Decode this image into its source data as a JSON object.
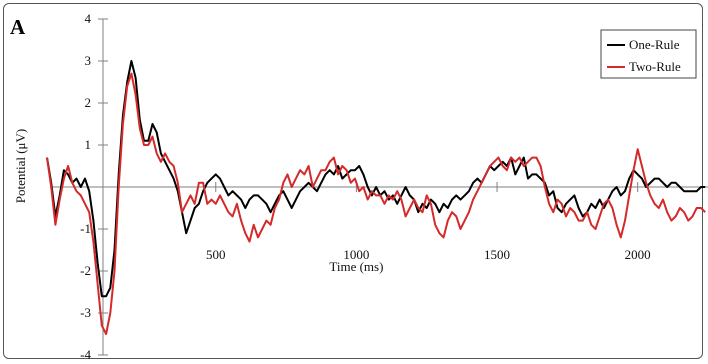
{
  "panel_label": "A",
  "chart_data": {
    "type": "line",
    "title": "",
    "xlabel": "Time (ms)",
    "ylabel": "Potential (μV)",
    "xlim": [
      -100,
      2250
    ],
    "ylim": [
      -4,
      4
    ],
    "x_ticks": [
      500,
      1000,
      1500,
      2000
    ],
    "x_tick_labels": [
      "500",
      "1000",
      "1500",
      "2000"
    ],
    "y_ticks": [
      -4,
      -3,
      -2,
      -1,
      0,
      1,
      2,
      3,
      4
    ],
    "y_tick_labels": [
      "-4",
      "-3",
      "-2",
      "-1",
      "",
      "1",
      "2",
      "3",
      "4"
    ],
    "grid": false,
    "legend_position": "top-right",
    "series": [
      {
        "name": "One-Rule",
        "color": "#000000",
        "x": [
          -100,
          -85,
          -70,
          -55,
          -40,
          -25,
          -10,
          5,
          20,
          35,
          50,
          65,
          80,
          95,
          110,
          125,
          140,
          155,
          170,
          185,
          200,
          215,
          230,
          245,
          260,
          275,
          290,
          305,
          320,
          335,
          350,
          365,
          380,
          395,
          410,
          425,
          440,
          455,
          470,
          485,
          500,
          515,
          530,
          545,
          560,
          575,
          590,
          605,
          620,
          635,
          650,
          665,
          680,
          695,
          710,
          725,
          740,
          755,
          770,
          785,
          800,
          815,
          830,
          845,
          860,
          875,
          890,
          905,
          920,
          935,
          950,
          965,
          980,
          995,
          1010,
          1025,
          1040,
          1055,
          1070,
          1085,
          1100,
          1115,
          1130,
          1145,
          1160,
          1175,
          1190,
          1205,
          1220,
          1235,
          1250,
          1265,
          1280,
          1295,
          1310,
          1325,
          1340,
          1355,
          1370,
          1385,
          1400,
          1415,
          1430,
          1445,
          1460,
          1475,
          1490,
          1505,
          1520,
          1535,
          1550,
          1565,
          1580,
          1595,
          1610,
          1625,
          1640,
          1655,
          1670,
          1685,
          1700,
          1715,
          1730,
          1745,
          1760,
          1775,
          1790,
          1805,
          1820,
          1835,
          1850,
          1865,
          1880,
          1895,
          1910,
          1925,
          1940,
          1955,
          1970,
          1985,
          2000,
          2015,
          2030,
          2045,
          2060,
          2075,
          2090,
          2105,
          2120,
          2135,
          2150,
          2165,
          2180,
          2195,
          2210,
          2225,
          2240
        ],
        "values": [
          0.7,
          0.1,
          -0.7,
          -0.2,
          0.4,
          0.3,
          0.1,
          0.2,
          0.0,
          0.2,
          -0.1,
          -0.8,
          -1.8,
          -2.6,
          -2.6,
          -2.4,
          -1.5,
          0.3,
          1.7,
          2.5,
          3.0,
          2.6,
          1.6,
          1.1,
          1.1,
          1.5,
          1.3,
          0.8,
          0.6,
          0.4,
          0.2,
          -0.1,
          -0.6,
          -1.1,
          -0.8,
          -0.5,
          -0.4,
          -0.1,
          0.1,
          0.2,
          0.3,
          0.2,
          0.0,
          -0.2,
          -0.1,
          -0.2,
          -0.3,
          -0.5,
          -0.3,
          -0.2,
          -0.2,
          -0.3,
          -0.4,
          -0.6,
          -0.4,
          -0.2,
          -0.1,
          -0.3,
          -0.5,
          -0.3,
          -0.1,
          0.0,
          0.1,
          0.0,
          -0.1,
          0.1,
          0.3,
          0.4,
          0.3,
          0.5,
          0.2,
          0.3,
          0.4,
          0.4,
          0.5,
          0.3,
          0.0,
          -0.2,
          0.0,
          -0.2,
          -0.1,
          -0.3,
          -0.2,
          -0.4,
          -0.2,
          0.0,
          -0.2,
          -0.3,
          -0.6,
          -0.4,
          -0.5,
          -0.3,
          -0.4,
          -0.6,
          -0.4,
          -0.5,
          -0.3,
          -0.2,
          -0.3,
          -0.2,
          -0.1,
          0.1,
          0.2,
          0.1,
          0.3,
          0.5,
          0.4,
          0.5,
          0.6,
          0.5,
          0.7,
          0.3,
          0.5,
          0.7,
          0.2,
          0.3,
          0.3,
          0.2,
          0.1,
          -0.2,
          -0.1,
          -0.5,
          -0.6,
          -0.4,
          -0.3,
          -0.2,
          -0.5,
          -0.7,
          -0.6,
          -0.4,
          -0.5,
          -0.3,
          -0.5,
          -0.3,
          -0.1,
          0.0,
          -0.2,
          -0.1,
          0.2,
          0.4,
          0.3,
          0.2,
          0.0,
          0.1,
          0.2,
          0.2,
          0.1,
          0.0,
          0.1,
          0.1,
          0.0,
          -0.1,
          -0.1,
          -0.1,
          -0.1,
          0.0,
          0.0
        ],
        "values_by_x_note": ""
      },
      {
        "name": "Two-Rule",
        "color": "#d42a2a",
        "x": [
          -100,
          -85,
          -70,
          -55,
          -40,
          -25,
          -10,
          5,
          20,
          35,
          50,
          65,
          80,
          95,
          110,
          125,
          140,
          155,
          170,
          185,
          200,
          215,
          230,
          245,
          260,
          275,
          290,
          305,
          320,
          335,
          350,
          365,
          380,
          395,
          410,
          425,
          440,
          455,
          470,
          485,
          500,
          515,
          530,
          545,
          560,
          575,
          590,
          605,
          620,
          635,
          650,
          665,
          680,
          695,
          710,
          725,
          740,
          755,
          770,
          785,
          800,
          815,
          830,
          845,
          860,
          875,
          890,
          905,
          920,
          935,
          950,
          965,
          980,
          995,
          1010,
          1025,
          1040,
          1055,
          1070,
          1085,
          1100,
          1115,
          1130,
          1145,
          1160,
          1175,
          1190,
          1205,
          1220,
          1235,
          1250,
          1265,
          1280,
          1295,
          1310,
          1325,
          1340,
          1355,
          1370,
          1385,
          1400,
          1415,
          1430,
          1445,
          1460,
          1475,
          1490,
          1505,
          1520,
          1535,
          1550,
          1565,
          1580,
          1595,
          1610,
          1625,
          1640,
          1655,
          1670,
          1685,
          1700,
          1715,
          1730,
          1745,
          1760,
          1775,
          1790,
          1805,
          1820,
          1835,
          1850,
          1865,
          1880,
          1895,
          1910,
          1925,
          1940,
          1955,
          1970,
          1985,
          2000,
          2015,
          2030,
          2045,
          2060,
          2075,
          2090,
          2105,
          2120,
          2135,
          2150,
          2165,
          2180,
          2195,
          2210,
          2225,
          2240
        ],
        "values": [
          0.7,
          0.0,
          -0.9,
          -0.3,
          0.2,
          0.5,
          0.1,
          -0.1,
          -0.2,
          -0.4,
          -0.6,
          -1.3,
          -2.3,
          -3.3,
          -3.5,
          -3.0,
          -2.0,
          0.0,
          1.5,
          2.4,
          2.7,
          2.2,
          1.4,
          1.0,
          1.0,
          1.2,
          0.8,
          0.6,
          0.8,
          0.6,
          0.5,
          0.1,
          -0.6,
          -0.4,
          -0.2,
          -0.4,
          0.1,
          0.1,
          -0.4,
          -0.3,
          -0.4,
          -0.2,
          -0.4,
          -0.6,
          -0.7,
          -0.4,
          -0.8,
          -1.1,
          -1.3,
          -0.9,
          -1.2,
          -1.0,
          -0.8,
          -0.9,
          -0.5,
          -0.3,
          0.1,
          0.3,
          0.0,
          0.2,
          0.4,
          0.3,
          0.5,
          0.0,
          0.2,
          0.4,
          0.4,
          0.6,
          0.7,
          0.3,
          0.5,
          0.4,
          0.1,
          0.2,
          -0.1,
          0.0,
          -0.3,
          -0.1,
          -0.2,
          -0.2,
          -0.4,
          -0.2,
          -0.3,
          -0.1,
          -0.3,
          -0.7,
          -0.5,
          -0.3,
          -0.5,
          -0.6,
          -0.2,
          -0.4,
          -0.9,
          -1.1,
          -1.2,
          -0.8,
          -0.6,
          -0.7,
          -1.0,
          -0.8,
          -0.6,
          -0.3,
          -0.1,
          0.1,
          0.3,
          0.5,
          0.6,
          0.7,
          0.5,
          0.4,
          0.7,
          0.6,
          0.7,
          0.5,
          0.6,
          0.7,
          0.7,
          0.5,
          0.0,
          -0.4,
          -0.6,
          -0.3,
          -0.4,
          -0.7,
          -0.5,
          -0.6,
          -0.8,
          -0.8,
          -0.6,
          -0.9,
          -1.0,
          -0.7,
          -0.4,
          -0.3,
          -0.5,
          -0.9,
          -1.2,
          -0.8,
          -0.2,
          0.4,
          0.9,
          0.5,
          0.1,
          -0.2,
          -0.4,
          -0.5,
          -0.3,
          -0.6,
          -0.8,
          -0.7,
          -0.5,
          -0.6,
          -0.8,
          -0.7,
          -0.5,
          -0.5,
          -0.6
        ]
      }
    ]
  }
}
